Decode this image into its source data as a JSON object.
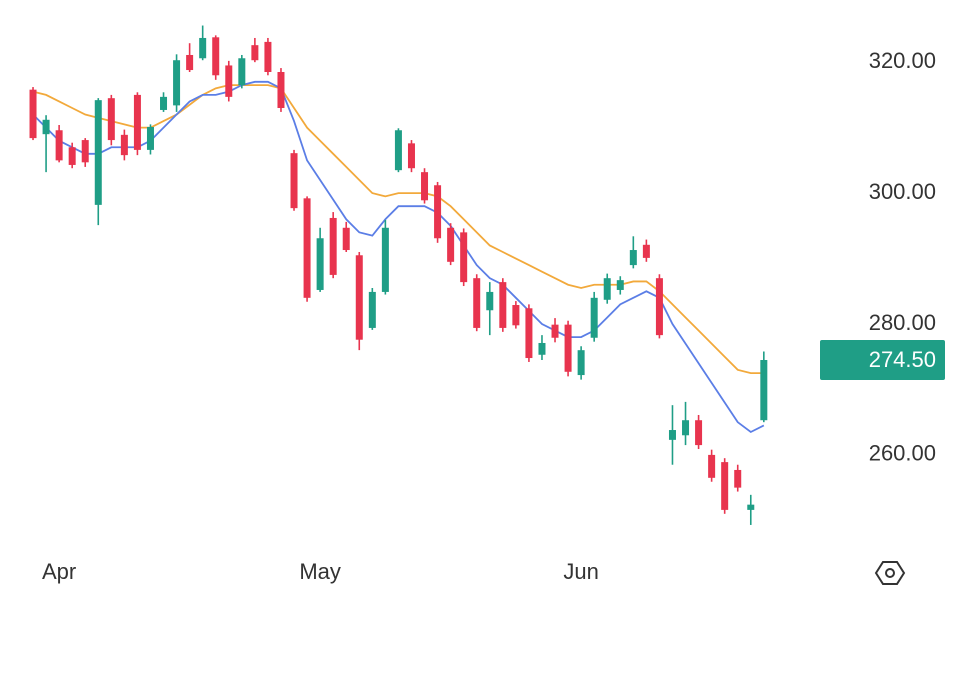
{
  "chart_data": {
    "type": "candlestick",
    "categories": [
      null,
      null,
      "Apr",
      null,
      null,
      null,
      null,
      null,
      null,
      null,
      null,
      null,
      null,
      null,
      null,
      null,
      null,
      null,
      null,
      null,
      null,
      null,
      "May",
      null,
      null,
      null,
      null,
      null,
      null,
      null,
      null,
      null,
      null,
      null,
      null,
      null,
      null,
      null,
      null,
      null,
      null,
      null,
      "Jun",
      null,
      null,
      null,
      null,
      null,
      null,
      null,
      null,
      null,
      null,
      null,
      null,
      null,
      null
    ],
    "open": [
      315.8,
      309.0,
      309.6,
      307.0,
      308.1,
      298.2,
      314.5,
      308.9,
      315.0,
      306.6,
      312.7,
      313.4,
      321.1,
      320.6,
      323.8,
      319.5,
      316.5,
      322.6,
      323.1,
      318.5,
      306.1,
      299.2,
      285.2,
      296.2,
      294.7,
      290.5,
      279.4,
      284.9,
      303.5,
      307.6,
      303.2,
      301.2,
      294.7,
      294.0,
      287.0,
      282.1,
      286.4,
      282.9,
      282.4,
      275.3,
      279.9,
      279.9,
      272.2,
      277.9,
      283.7,
      285.2,
      289.0,
      292.1,
      287.0,
      262.3,
      263.0,
      265.3,
      260.0,
      258.9,
      257.7,
      251.6,
      265.3
    ],
    "high": [
      316.2,
      311.9,
      310.4,
      307.7,
      308.4,
      314.5,
      315.0,
      309.7,
      315.4,
      310.5,
      315.4,
      321.2,
      322.9,
      325.6,
      324.1,
      320.2,
      321.1,
      323.7,
      323.7,
      319.1,
      306.6,
      299.5,
      294.7,
      297.1,
      295.6,
      291.0,
      285.5,
      295.9,
      309.9,
      308.1,
      303.8,
      301.7,
      295.4,
      294.6,
      287.6,
      286.4,
      287.0,
      283.5,
      283.0,
      278.3,
      280.9,
      280.5,
      276.6,
      284.9,
      287.7,
      287.3,
      293.4,
      292.9,
      287.6,
      267.6,
      268.1,
      266.1,
      260.8,
      259.5,
      258.5,
      253.9,
      275.8
    ],
    "low": [
      308.1,
      303.2,
      304.7,
      303.8,
      304.0,
      295.1,
      307.3,
      305.0,
      305.8,
      305.9,
      312.4,
      312.4,
      318.5,
      320.3,
      317.3,
      314.0,
      316.0,
      320.0,
      318.0,
      312.4,
      297.3,
      283.4,
      284.9,
      287.0,
      291.0,
      276.0,
      279.1,
      284.5,
      303.2,
      303.2,
      298.4,
      292.4,
      289.0,
      285.8,
      278.9,
      278.3,
      278.8,
      279.3,
      274.2,
      274.5,
      277.2,
      272.0,
      271.5,
      277.3,
      283.1,
      284.5,
      288.5,
      289.5,
      277.8,
      258.5,
      261.5,
      260.9,
      255.9,
      251.0,
      254.4,
      249.3,
      265.0
    ],
    "close": [
      308.4,
      311.2,
      305.0,
      304.3,
      304.7,
      314.2,
      308.1,
      305.8,
      306.6,
      310.1,
      314.7,
      320.3,
      318.8,
      323.7,
      318.0,
      314.7,
      320.6,
      320.3,
      318.5,
      313.0,
      297.7,
      284.0,
      293.1,
      287.5,
      291.3,
      277.6,
      284.9,
      294.7,
      309.6,
      303.8,
      298.9,
      293.1,
      289.5,
      286.4,
      279.4,
      284.9,
      279.4,
      279.8,
      274.8,
      277.1,
      277.9,
      272.7,
      276.0,
      284.0,
      287.0,
      286.7,
      291.3,
      290.1,
      278.3,
      263.8,
      265.3,
      261.5,
      256.5,
      251.6,
      255.0,
      252.4,
      274.5
    ],
    "up_color": "#1f9e86",
    "down_color": "#e8344e",
    "moving_averages": [
      {
        "color": "#f2a93b",
        "values": [
          315.5,
          315,
          314,
          313,
          312,
          311.5,
          311,
          310.5,
          310,
          310,
          311,
          312,
          313.5,
          315,
          316,
          316.5,
          316.5,
          316.5,
          316.5,
          316,
          313,
          310,
          308,
          306,
          304,
          302,
          300,
          299.5,
          300,
          300,
          300,
          299.5,
          298,
          296,
          294,
          292,
          291,
          290,
          289,
          288,
          287,
          286,
          285.5,
          286,
          286,
          286,
          286.5,
          286.5,
          285,
          283,
          281,
          279,
          277,
          275,
          273,
          272.5,
          272.5
        ]
      },
      {
        "color": "#5b7ee6",
        "values": [
          312,
          310,
          308,
          307,
          306,
          306,
          307,
          307,
          307,
          308,
          310,
          312,
          314,
          315,
          315,
          315.5,
          316.5,
          317,
          317,
          316,
          311,
          305,
          302,
          299,
          296,
          294,
          293.5,
          296,
          298,
          298,
          298,
          297,
          295,
          292,
          289,
          287,
          286,
          284,
          282,
          280,
          279,
          278,
          278,
          279,
          281,
          283,
          284,
          285,
          284,
          280,
          277,
          274,
          271,
          268,
          265,
          263.5,
          264.5
        ]
      }
    ],
    "ylim": [
      247,
      329.5
    ],
    "yticks": [
      {
        "value": 260,
        "label": "260.00"
      },
      {
        "value": 280,
        "label": "280.00"
      },
      {
        "value": 300,
        "label": "300.00"
      },
      {
        "value": 320,
        "label": "320.00"
      }
    ],
    "last_price": {
      "value": 274.5,
      "label": "274.50",
      "color": "#1f9e86"
    }
  }
}
